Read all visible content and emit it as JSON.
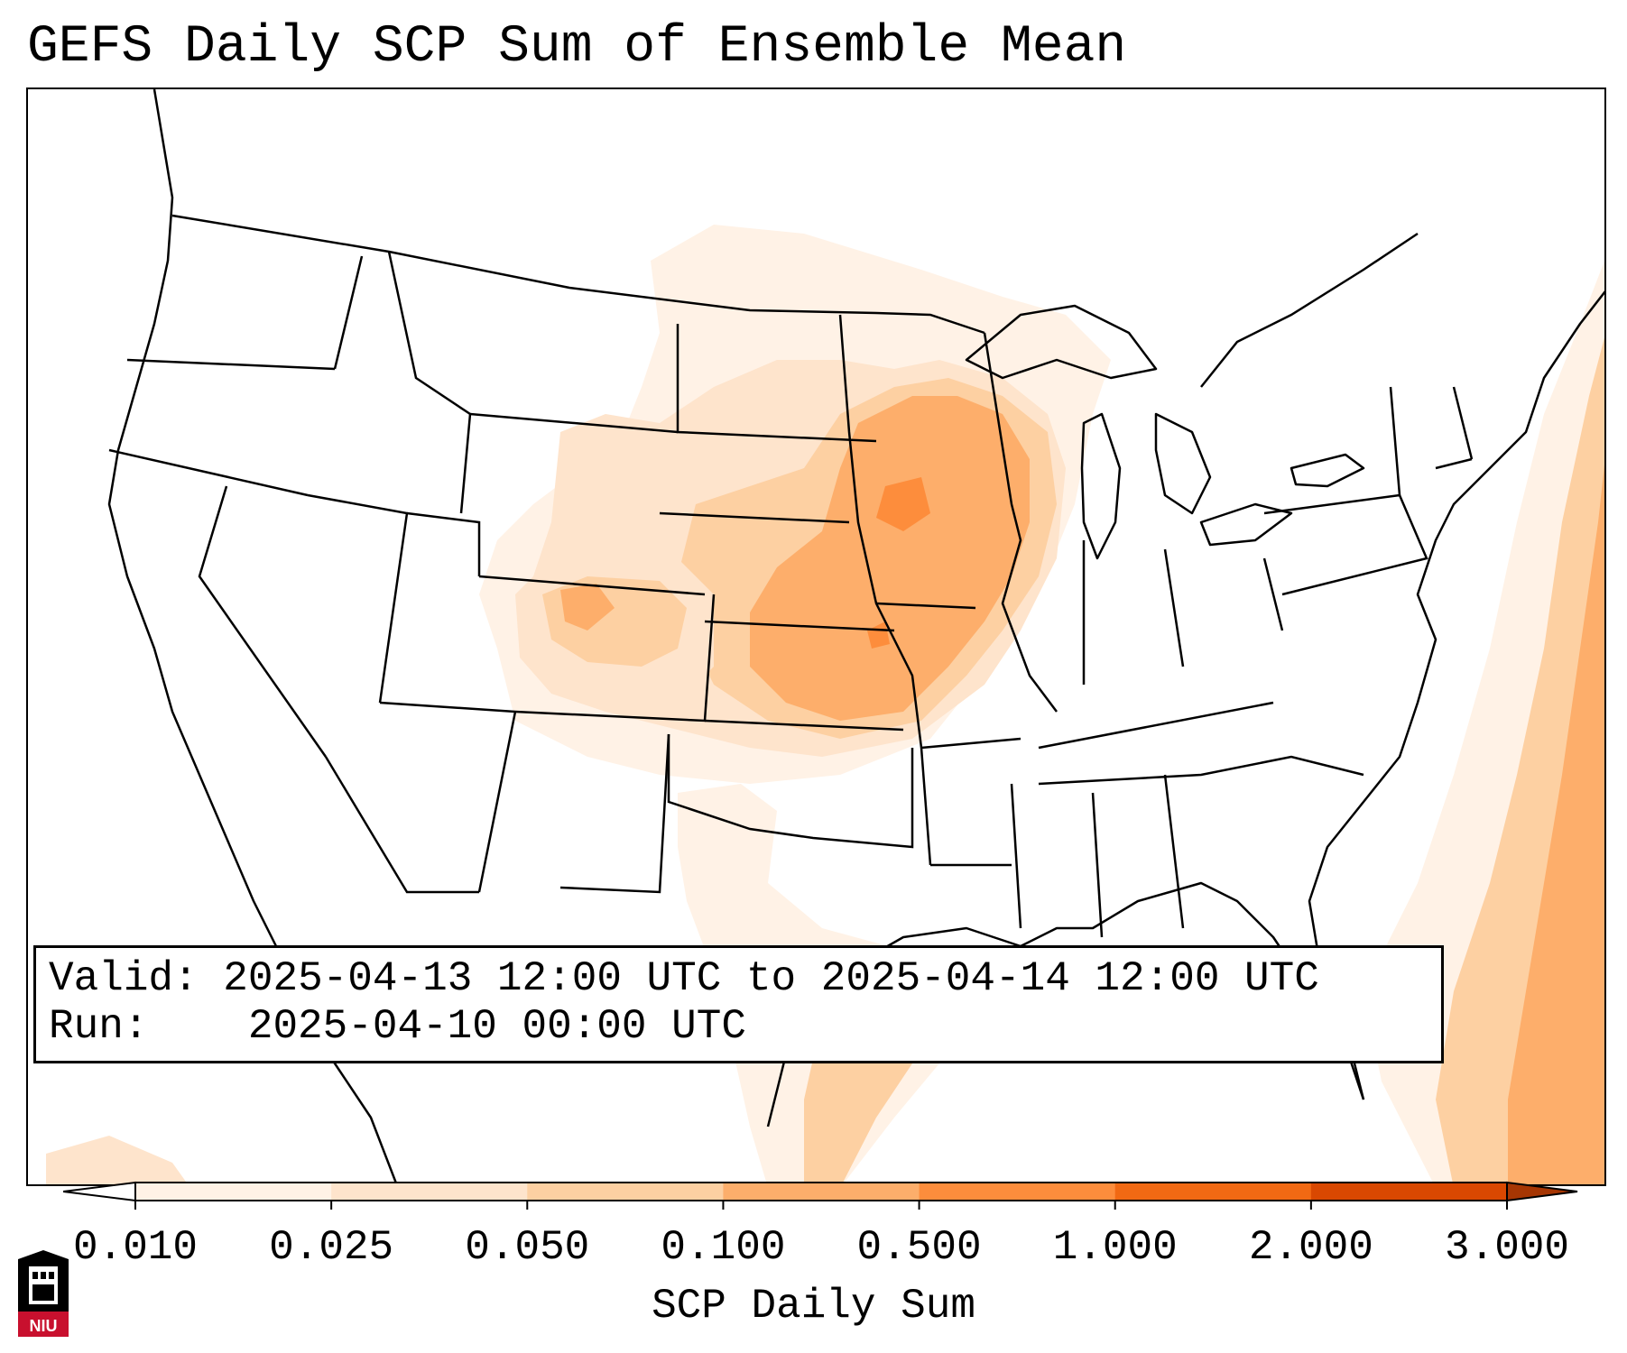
{
  "title": "GEFS Daily SCP Sum of Ensemble Mean",
  "info": {
    "valid_label": "Valid:",
    "valid_text": "2025-04-13 12:00 UTC to 2025-04-14 12:00 UTC",
    "run_label": "Run:",
    "run_text": "2025-04-10 00:00 UTC"
  },
  "colorbar": {
    "label": "SCP Daily Sum",
    "ticks": [
      "0.010",
      "0.025",
      "0.050",
      "0.100",
      "0.500",
      "1.000",
      "2.000",
      "3.000"
    ],
    "colors": [
      "#fff2e6",
      "#fee4cc",
      "#fdd0a2",
      "#fdae6b",
      "#fd8d3c",
      "#f16913",
      "#d94801"
    ],
    "extend": "both",
    "under_color": "#ffffff",
    "over_color": "#a63603"
  },
  "logo": {
    "text": "NIU",
    "colors": {
      "shield": "#c8102e",
      "tower": "#ffffff",
      "base": "#000000"
    }
  },
  "map": {
    "projection": "lambert-conformal",
    "region": "Contiguous United States",
    "background": "#ffffff",
    "border_color": "#000000"
  }
}
